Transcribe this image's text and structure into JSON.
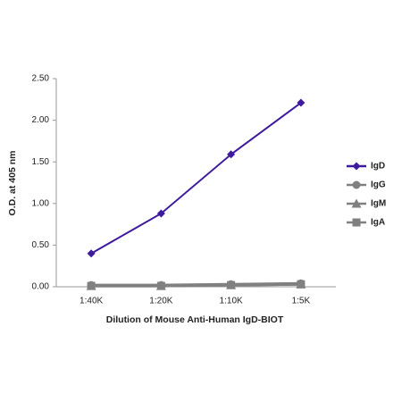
{
  "chart_data": {
    "type": "line",
    "x_label": "Dilution of Mouse Anti-Human IgD-BIOT",
    "y_label": "O.D. at 405 nm",
    "categories": [
      "1:40K",
      "1:20K",
      "1:10K",
      "1:5K"
    ],
    "series": [
      {
        "name": "IgD",
        "color": "#3d1a9e",
        "marker": "diamond",
        "values": [
          0.4,
          0.88,
          1.59,
          2.21
        ]
      },
      {
        "name": "IgG",
        "color": "#808080",
        "marker": "circle",
        "values": [
          0.02,
          0.02,
          0.03,
          0.04
        ]
      },
      {
        "name": "IgM",
        "color": "#808080",
        "marker": "triangle",
        "values": [
          0.01,
          0.01,
          0.02,
          0.03
        ]
      },
      {
        "name": "IgA",
        "color": "#808080",
        "marker": "square",
        "values": [
          0.01,
          0.01,
          0.02,
          0.03
        ]
      }
    ],
    "ylim": [
      0,
      2.5
    ],
    "yticks": [
      {
        "value": 0,
        "label": "0.00"
      },
      {
        "value": 0.5,
        "label": "0.50"
      },
      {
        "value": 1,
        "label": "1.00"
      },
      {
        "value": 1.5,
        "label": "1.50"
      },
      {
        "value": 2,
        "label": "2.00"
      },
      {
        "value": 2.5,
        "label": "2.50"
      }
    ],
    "grid": false
  }
}
